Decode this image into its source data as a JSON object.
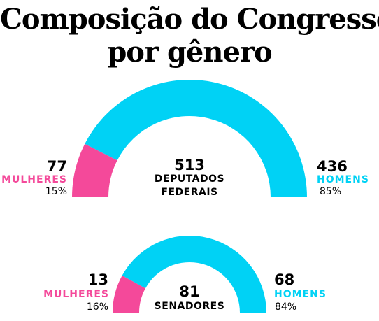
{
  "title_line1": "Composição do Congresso",
  "title_line2": "por gênero",
  "colors": {
    "women": "#F4499A",
    "men": "#00D2F5",
    "text": "#000000"
  },
  "chart_data": [
    {
      "type": "pie",
      "shape": "half-donut",
      "total": 513,
      "total_label_line1": "DEPUTADOS",
      "total_label_line2": "FEDERAIS",
      "series": [
        {
          "name": "MULHERES",
          "value": 77,
          "percent_label": "15%",
          "color": "#F4499A"
        },
        {
          "name": "HOMENS",
          "value": 436,
          "percent_label": "85%",
          "color": "#00D2F5"
        }
      ]
    },
    {
      "type": "pie",
      "shape": "half-donut",
      "total": 81,
      "total_label_line1": "SENADORES",
      "series": [
        {
          "name": "MULHERES",
          "value": 13,
          "percent_label": "16%",
          "color": "#F4499A"
        },
        {
          "name": "HOMENS",
          "value": 68,
          "percent_label": "84%",
          "color": "#00D2F5"
        }
      ]
    }
  ]
}
